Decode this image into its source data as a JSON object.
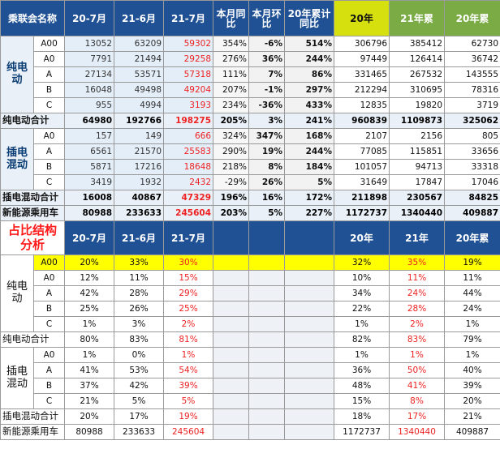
{
  "top": {
    "headers": [
      "乘联会名称",
      "20-7月",
      "21-6月",
      "21-7月",
      "本月同比",
      "本月环比",
      "20年累计同比",
      "20年",
      "21年累",
      "20年累"
    ],
    "pure_ev_group": "纯电动",
    "pure_ev_rows": [
      {
        "seg": "A00",
        "v": [
          "13052",
          "63209",
          "59302",
          "354%",
          "-6%",
          "514%",
          "306796",
          "385412",
          "62730"
        ]
      },
      {
        "seg": "A0",
        "v": [
          "7791",
          "21494",
          "29258",
          "276%",
          "36%",
          "244%",
          "97449",
          "126414",
          "36742"
        ]
      },
      {
        "seg": "A",
        "v": [
          "27134",
          "53571",
          "57318",
          "111%",
          "7%",
          "86%",
          "331465",
          "267532",
          "143555"
        ]
      },
      {
        "seg": "B",
        "v": [
          "16048",
          "49498",
          "49204",
          "207%",
          "-1%",
          "297%",
          "212294",
          "310695",
          "78316"
        ]
      },
      {
        "seg": "C",
        "v": [
          "955",
          "4994",
          "3193",
          "234%",
          "-36%",
          "433%",
          "12835",
          "19820",
          "3719"
        ]
      }
    ],
    "pure_ev_total": {
      "label": "纯电动合计",
      "v": [
        "64980",
        "192766",
        "198275",
        "205%",
        "3%",
        "241%",
        "960839",
        "1109873",
        "325062"
      ]
    },
    "phev_group": "插电混动",
    "phev_rows": [
      {
        "seg": "A0",
        "v": [
          "157",
          "149",
          "666",
          "324%",
          "347%",
          "168%",
          "2107",
          "2156",
          "805"
        ]
      },
      {
        "seg": "A",
        "v": [
          "6561",
          "21570",
          "25583",
          "290%",
          "19%",
          "244%",
          "77085",
          "115851",
          "33656"
        ]
      },
      {
        "seg": "B",
        "v": [
          "5871",
          "17216",
          "18648",
          "218%",
          "8%",
          "184%",
          "101057",
          "94713",
          "33318"
        ]
      },
      {
        "seg": "C",
        "v": [
          "3419",
          "1932",
          "2432",
          "-29%",
          "26%",
          "5%",
          "31649",
          "17847",
          "17046"
        ]
      }
    ],
    "phev_total": {
      "label": "插电混动合计",
      "v": [
        "16008",
        "40867",
        "47329",
        "196%",
        "16%",
        "172%",
        "211898",
        "230567",
        "84825"
      ]
    },
    "nev_total": {
      "label": "新能源乘用车",
      "v": [
        "80988",
        "233633",
        "245604",
        "203%",
        "5%",
        "227%",
        "1172737",
        "1340440",
        "409887"
      ]
    }
  },
  "bottom": {
    "title": "占比结构分析",
    "headers": [
      "20-7月",
      "21-6月",
      "21-7月",
      "",
      "",
      "",
      "20年",
      "21年",
      "20年累"
    ],
    "pure_ev_group": "纯电动",
    "pure_ev_rows": [
      {
        "seg": "A00",
        "v": [
          "20%",
          "33%",
          "30%",
          "32%",
          "35%",
          "19%"
        ]
      },
      {
        "seg": "A0",
        "v": [
          "12%",
          "11%",
          "15%",
          "10%",
          "11%",
          "11%"
        ]
      },
      {
        "seg": "A",
        "v": [
          "42%",
          "28%",
          "29%",
          "34%",
          "24%",
          "44%"
        ]
      },
      {
        "seg": "B",
        "v": [
          "25%",
          "26%",
          "25%",
          "22%",
          "28%",
          "24%"
        ]
      },
      {
        "seg": "C",
        "v": [
          "1%",
          "3%",
          "2%",
          "1%",
          "2%",
          "1%"
        ]
      }
    ],
    "pure_ev_total": {
      "label": "纯电动合计",
      "v": [
        "80%",
        "83%",
        "81%",
        "82%",
        "83%",
        "79%"
      ]
    },
    "phev_group": "插电混动",
    "phev_rows": [
      {
        "seg": "A0",
        "v": [
          "1%",
          "0%",
          "1%",
          "1%",
          "1%",
          "1%"
        ]
      },
      {
        "seg": "A",
        "v": [
          "41%",
          "53%",
          "54%",
          "36%",
          "50%",
          "40%"
        ]
      },
      {
        "seg": "B",
        "v": [
          "37%",
          "42%",
          "39%",
          "48%",
          "41%",
          "39%"
        ]
      },
      {
        "seg": "C",
        "v": [
          "21%",
          "5%",
          "5%",
          "15%",
          "8%",
          "20%"
        ]
      }
    ],
    "phev_total": {
      "label": "插电混动合计",
      "v": [
        "20%",
        "17%",
        "19%",
        "18%",
        "17%",
        "21%"
      ]
    },
    "nev_total": {
      "label": "新能源乘用车",
      "v": [
        "80988",
        "233633",
        "245604",
        "1172737",
        "1340440",
        "409887"
      ]
    }
  },
  "colors": {
    "header_blue": "#1f5194",
    "header_yellow": "#d6e00e",
    "header_green": "#7aab44",
    "highlight_red": "#ee2222",
    "highlight_yellow": "#ffff00"
  }
}
